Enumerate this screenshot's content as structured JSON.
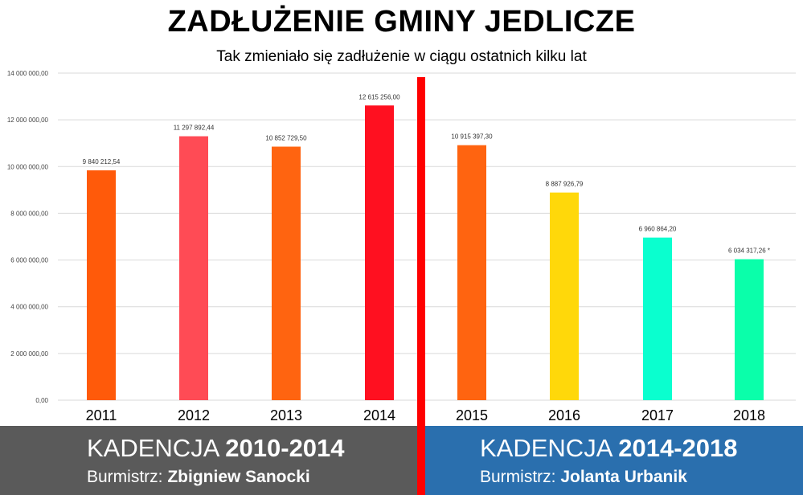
{
  "title": "ZADŁUŻENIE GMINY JEDLICZE",
  "subtitle": "Tak zmieniało się zadłużenie w ciągu ostatnich kilku lat",
  "chart_data": {
    "type": "bar",
    "categories": [
      "2011",
      "2012",
      "2013",
      "2014",
      "2015",
      "2016",
      "2017",
      "2018"
    ],
    "values": [
      9840212.54,
      11297892.44,
      10852729.5,
      12615256.0,
      10915397.3,
      8887926.79,
      6960864.2,
      6034317.26
    ],
    "data_labels": [
      "9 840 212,54",
      "11 297 892,44",
      "10 852 729,50",
      "12 615 256,00",
      "10 915 397,30",
      "8 887 926,79",
      "6 960 864,20",
      "6 034 317,26 *"
    ],
    "bar_colors": [
      "#ff5a0a",
      "#ff4b55",
      "#ff6410",
      "#ff1020",
      "#ff6410",
      "#ffd80a",
      "#0affcf",
      "#0affaa"
    ],
    "ylim": [
      0,
      14000000
    ],
    "yticks": [
      {
        "value": 0,
        "label": "0,00"
      },
      {
        "value": 2000000,
        "label": "2 000 000,00"
      },
      {
        "value": 4000000,
        "label": "4 000 000,00"
      },
      {
        "value": 6000000,
        "label": "6 000 000,00"
      },
      {
        "value": 8000000,
        "label": "8 000 000,00"
      },
      {
        "value": 10000000,
        "label": "10 000 000,00"
      },
      {
        "value": 12000000,
        "label": "12 000 000,00"
      },
      {
        "value": 14000000,
        "label": "14 000 000,00"
      }
    ],
    "grid": true,
    "xlabel": "",
    "ylabel": ""
  },
  "terms": {
    "left": {
      "prefix": "KADENCJA ",
      "years": "2010-2014",
      "mayor_prefix": "Burmistrz: ",
      "mayor": "Zbigniew Sanocki",
      "color": "#5a5a5a"
    },
    "right": {
      "prefix": "KADENCJA ",
      "years": "2014-2018",
      "mayor_prefix": "Burmistrz: ",
      "mayor": "Jolanta Urbanik",
      "color": "#2a6fae"
    }
  },
  "divider_color": "#ff0000"
}
